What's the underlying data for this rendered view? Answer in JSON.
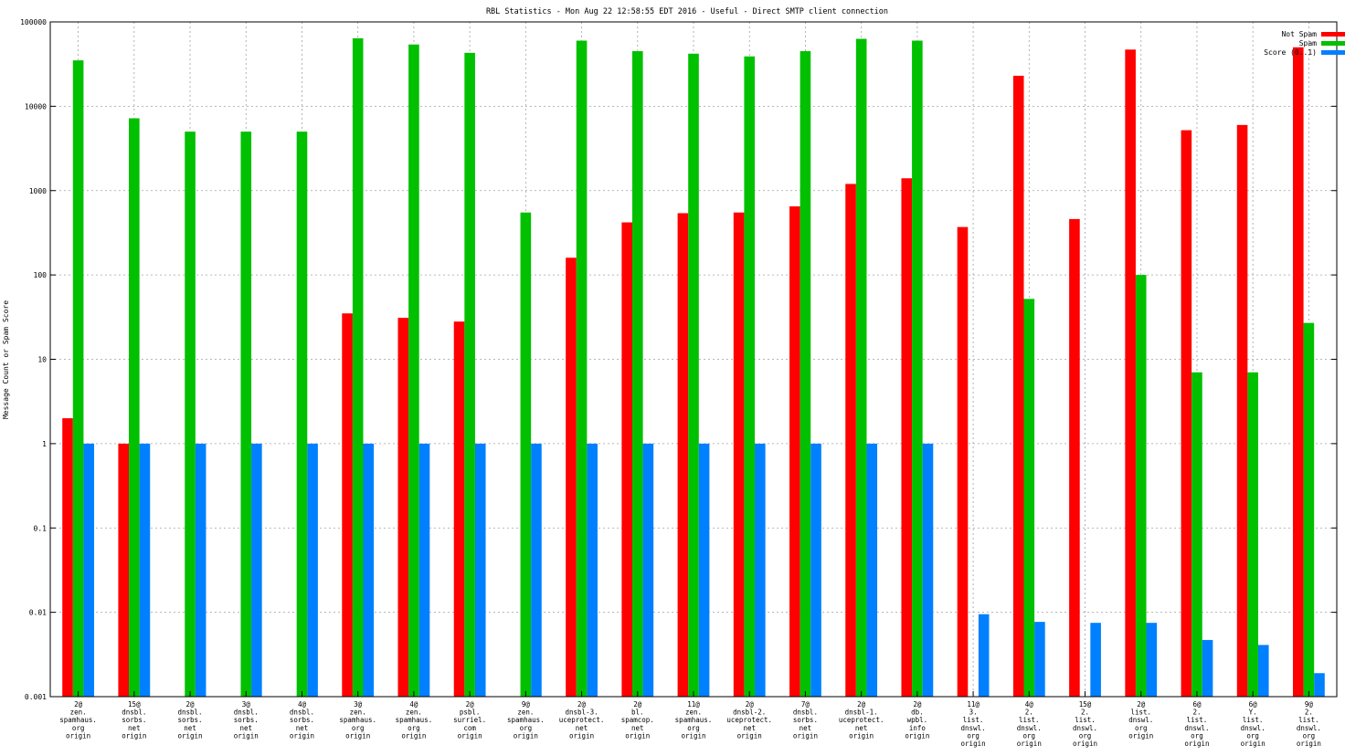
{
  "chart_data": {
    "type": "bar",
    "title": "RBL Statistics - Mon Aug 22 12:58:55 EDT 2016 - Useful - Direct SMTP client connection",
    "ylabel": "Message Count or Spam Score",
    "xlabel": "",
    "yscale": "log",
    "ylim": [
      0.001,
      100000
    ],
    "yticks": [
      "0.001",
      "0.01",
      "0.1",
      "1",
      "10",
      "100",
      "1000",
      "10000",
      "100000"
    ],
    "grid": true,
    "legend_position": "top-right",
    "categories": [
      [
        "2@",
        "zen.",
        "spamhaus.",
        "org",
        "origin"
      ],
      [
        "15@",
        "dnsbl.",
        "sorbs.",
        "net",
        "origin"
      ],
      [
        "2@",
        "dnsbl.",
        "sorbs.",
        "net",
        "origin"
      ],
      [
        "3@",
        "dnsbl.",
        "sorbs.",
        "net",
        "origin"
      ],
      [
        "4@",
        "dnsbl.",
        "sorbs.",
        "net",
        "origin"
      ],
      [
        "3@",
        "zen.",
        "spamhaus.",
        "org",
        "origin"
      ],
      [
        "4@",
        "zen.",
        "spamhaus.",
        "org",
        "origin"
      ],
      [
        "2@",
        "psbl.",
        "surriel.",
        "com",
        "origin"
      ],
      [
        "9@",
        "zen.",
        "spamhaus.",
        "org",
        "origin"
      ],
      [
        "2@",
        "dnsbl-3.",
        "uceprotect.",
        "net",
        "origin"
      ],
      [
        "2@",
        "bl.",
        "spamcop.",
        "net",
        "origin"
      ],
      [
        "11@",
        "zen.",
        "spamhaus.",
        "org",
        "origin"
      ],
      [
        "2@",
        "dnsbl-2.",
        "uceprotect.",
        "net",
        "origin"
      ],
      [
        "7@",
        "dnsbl.",
        "sorbs.",
        "net",
        "origin"
      ],
      [
        "2@",
        "dnsbl-1.",
        "uceprotect.",
        "net",
        "origin"
      ],
      [
        "2@",
        "db.",
        "wpbl.",
        "info",
        "origin"
      ],
      [
        "11@",
        "3.",
        "list.",
        "dnswl.",
        "org",
        "origin"
      ],
      [
        "4@",
        "2.",
        "list.",
        "dnswl.",
        "org",
        "origin"
      ],
      [
        "15@",
        "2.",
        "list.",
        "dnswl.",
        "org",
        "origin"
      ],
      [
        "2@",
        "list.",
        "dnswl.",
        "org",
        "origin"
      ],
      [
        "6@",
        "2.",
        "list.",
        "dnswl.",
        "org",
        "origin"
      ],
      [
        "6@",
        "Y.",
        "list.",
        "dnswl.",
        "org",
        "origin"
      ],
      [
        "9@",
        "2.",
        "list.",
        "dnswl.",
        "org",
        "origin"
      ]
    ],
    "series": [
      {
        "name": "Not Spam",
        "color": "#ff0000",
        "values": [
          2,
          1,
          null,
          null,
          null,
          35,
          31,
          28,
          null,
          160,
          420,
          540,
          550,
          650,
          1200,
          1400,
          370,
          23000,
          460,
          47000,
          5200,
          6000,
          50000
        ]
      },
      {
        "name": "Spam",
        "color": "#00c000",
        "values": [
          35000,
          7200,
          5000,
          5000,
          5000,
          64000,
          54000,
          43000,
          550,
          60000,
          45000,
          42000,
          39000,
          45000,
          63000,
          60000,
          null,
          52,
          null,
          100,
          7,
          7,
          27
        ]
      },
      {
        "name": "Score (0..1)",
        "color": "#0080ff",
        "values": [
          1,
          1,
          1,
          1,
          1,
          1,
          1,
          1,
          1,
          1,
          1,
          1,
          1,
          1,
          1,
          1,
          0.0095,
          0.0077,
          0.0075,
          0.0075,
          0.0047,
          0.0041,
          0.0019
        ]
      }
    ]
  }
}
